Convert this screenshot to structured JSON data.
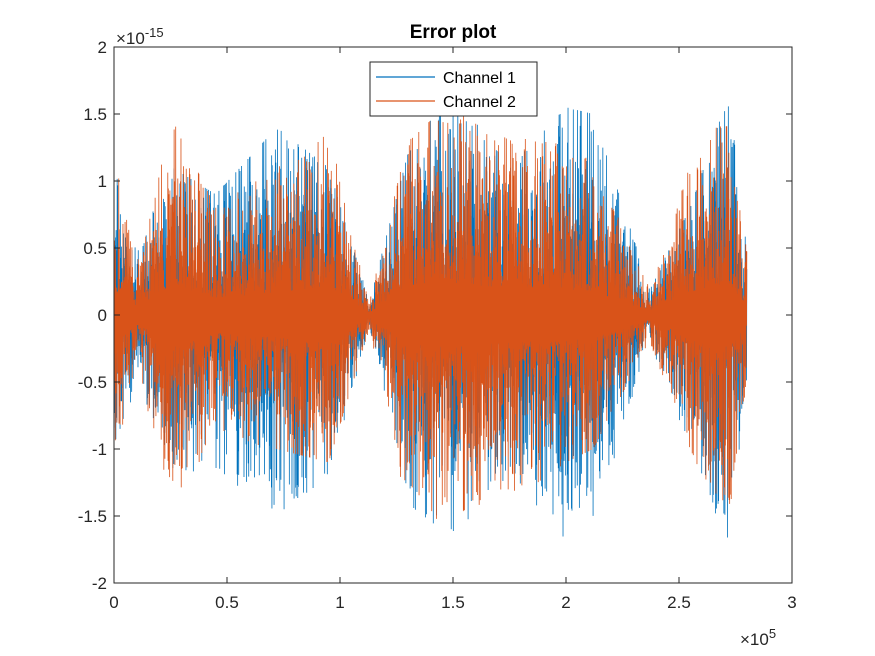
{
  "chart_data": {
    "type": "line",
    "title": "Error plot",
    "xlabel": "",
    "ylabel": "",
    "x_exponent_label": "×10^5",
    "y_exponent_label": "×10^-15",
    "x_range": [
      0,
      280000
    ],
    "xlim": [
      0,
      300000
    ],
    "ylim": [
      -2e-15,
      2e-15
    ],
    "x_ticks": [
      0,
      0.5,
      1,
      1.5,
      2,
      2.5,
      3
    ],
    "x_tick_labels": [
      "0",
      "0.5",
      "1",
      "1.5",
      "2",
      "2.5",
      "3"
    ],
    "y_ticks": [
      -2,
      -1.5,
      -1,
      -0.5,
      0,
      0.5,
      1,
      1.5,
      2
    ],
    "y_tick_labels": [
      "-2",
      "-1.5",
      "-1",
      "-0.5",
      "0",
      "0.5",
      "1",
      "1.5",
      "2"
    ],
    "grid": false,
    "legend_position": "top-center",
    "series": [
      {
        "name": "Channel 1",
        "color": "#0072BD",
        "envelope": [
          {
            "x": 0,
            "max": 1.1e-15,
            "min": -1.3e-15
          },
          {
            "x": 10000,
            "max": 5e-16,
            "min": -5e-16
          },
          {
            "x": 26000,
            "max": 1.1e-15,
            "min": -1.2e-15
          },
          {
            "x": 45000,
            "max": 9e-16,
            "min": -1.5e-15
          },
          {
            "x": 72000,
            "max": 1.4e-15,
            "min": -1.65e-15
          },
          {
            "x": 95000,
            "max": 1.1e-15,
            "min": -1.4e-15
          },
          {
            "x": 113000,
            "max": 1e-16,
            "min": -1e-16
          },
          {
            "x": 130000,
            "max": 1.2e-15,
            "min": -1.6e-15
          },
          {
            "x": 150000,
            "max": 1.7e-15,
            "min": -1.75e-15
          },
          {
            "x": 175000,
            "max": 1.1e-15,
            "min": -1.3e-15
          },
          {
            "x": 200000,
            "max": 1.55e-15,
            "min": -1.85e-15
          },
          {
            "x": 212000,
            "max": 1.5e-15,
            "min": -1.7e-15
          },
          {
            "x": 237000,
            "max": 2e-16,
            "min": -2e-16
          },
          {
            "x": 255000,
            "max": 8e-16,
            "min": -1.2e-15
          },
          {
            "x": 272000,
            "max": 1.65e-15,
            "min": -1.85e-15
          },
          {
            "x": 280000,
            "max": 5e-16,
            "min": -5e-16
          }
        ]
      },
      {
        "name": "Channel 2",
        "color": "#D95319",
        "envelope": [
          {
            "x": 0,
            "max": 1.2e-15,
            "min": -1.2e-15
          },
          {
            "x": 10000,
            "max": 4e-16,
            "min": -4e-16
          },
          {
            "x": 26000,
            "max": 1.45e-15,
            "min": -1.55e-15
          },
          {
            "x": 45000,
            "max": 8e-16,
            "min": -9e-16
          },
          {
            "x": 72000,
            "max": 1.2e-15,
            "min": -1e-15
          },
          {
            "x": 95000,
            "max": 1.65e-15,
            "min": -1.1e-15
          },
          {
            "x": 113000,
            "max": 1e-16,
            "min": -1e-16
          },
          {
            "x": 130000,
            "max": 1.3e-15,
            "min": -1.65e-15
          },
          {
            "x": 150000,
            "max": 1.6e-15,
            "min": -1.5e-15
          },
          {
            "x": 175000,
            "max": 1.3e-15,
            "min": -1.4e-15
          },
          {
            "x": 200000,
            "max": 1.45e-15,
            "min": -1.1e-15
          },
          {
            "x": 212000,
            "max": 1.3e-15,
            "min": -1e-15
          },
          {
            "x": 237000,
            "max": 2e-16,
            "min": -2e-16
          },
          {
            "x": 255000,
            "max": 1.3e-15,
            "min": -1e-15
          },
          {
            "x": 272000,
            "max": 1.5e-15,
            "min": -1.65e-15
          },
          {
            "x": 280000,
            "max": 5e-16,
            "min": -5e-16
          }
        ]
      }
    ]
  }
}
